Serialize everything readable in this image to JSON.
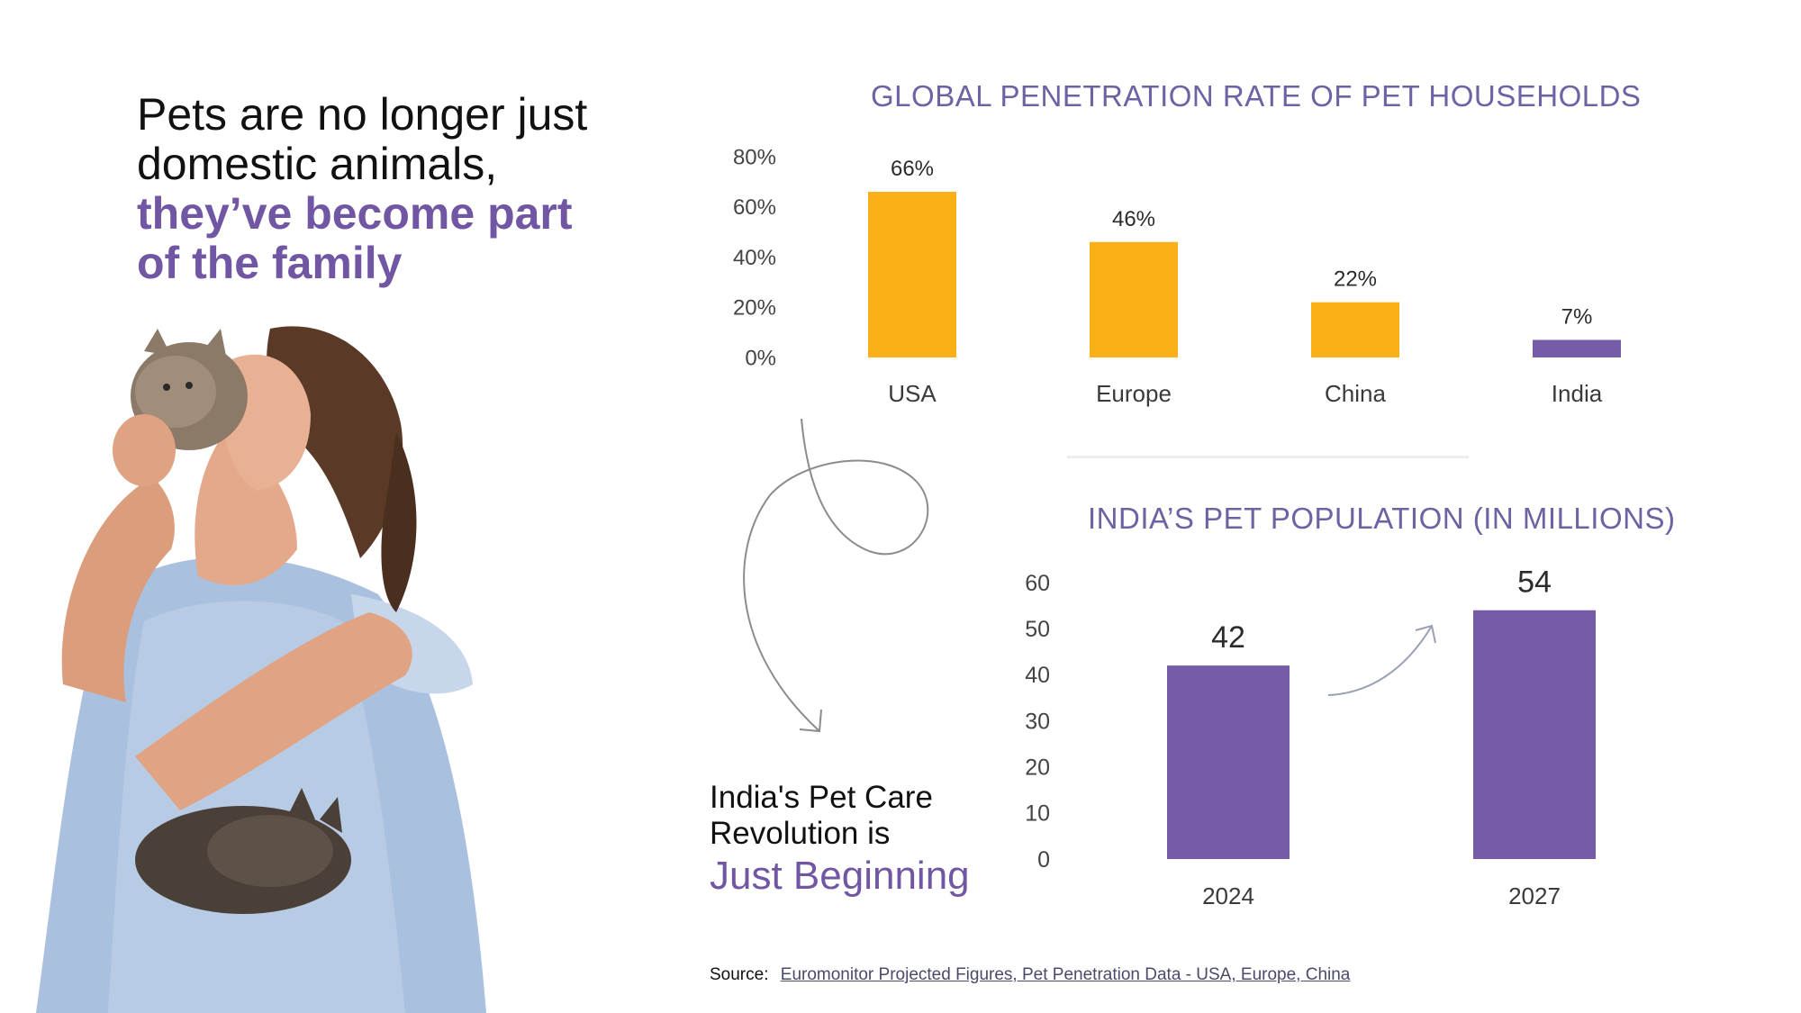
{
  "headline": {
    "line1": "Pets are no longer just",
    "line2": "domestic animals,",
    "line3": "they’ve become part",
    "line4": "of the family"
  },
  "callout": {
    "line1": "India's Pet Care",
    "line2": "Revolution is",
    "accent": "Just Beginning"
  },
  "source": {
    "label": "Source:",
    "link_text": "Euromonitor Projected Figures, Pet Penetration Data - USA, Europe, China"
  },
  "colors": {
    "accent_purple": "#7156a3",
    "title_purple": "#6d62a3",
    "bar_orange": "#fbb018",
    "bar_purple": "#765ba8"
  },
  "chart_data": [
    {
      "type": "bar",
      "title": "GLOBAL PENETRATION RATE OF PET HOUSEHOLDS",
      "categories": [
        "USA",
        "Europe",
        "China",
        "India"
      ],
      "values": [
        66,
        46,
        22,
        7
      ],
      "value_labels": [
        "66%",
        "46%",
        "22%",
        "7%"
      ],
      "bar_colors": [
        "#fbb018",
        "#fbb018",
        "#fbb018",
        "#765ba8"
      ],
      "yticks": [
        "0%",
        "20%",
        "40%",
        "60%",
        "80%"
      ],
      "ylim": [
        0,
        80
      ],
      "grid": false,
      "xlabel": "",
      "ylabel": ""
    },
    {
      "type": "bar",
      "title": "INDIA’S PET POPULATION (IN MILLIONS)",
      "categories": [
        "2024",
        "2027"
      ],
      "values": [
        42,
        54
      ],
      "value_labels": [
        "42",
        "54"
      ],
      "bar_colors": [
        "#765ba8",
        "#765ba8"
      ],
      "yticks": [
        "0",
        "10",
        "20",
        "30",
        "40",
        "50",
        "60"
      ],
      "ylim": [
        0,
        60
      ],
      "grid": false,
      "xlabel": "",
      "ylabel": ""
    }
  ]
}
